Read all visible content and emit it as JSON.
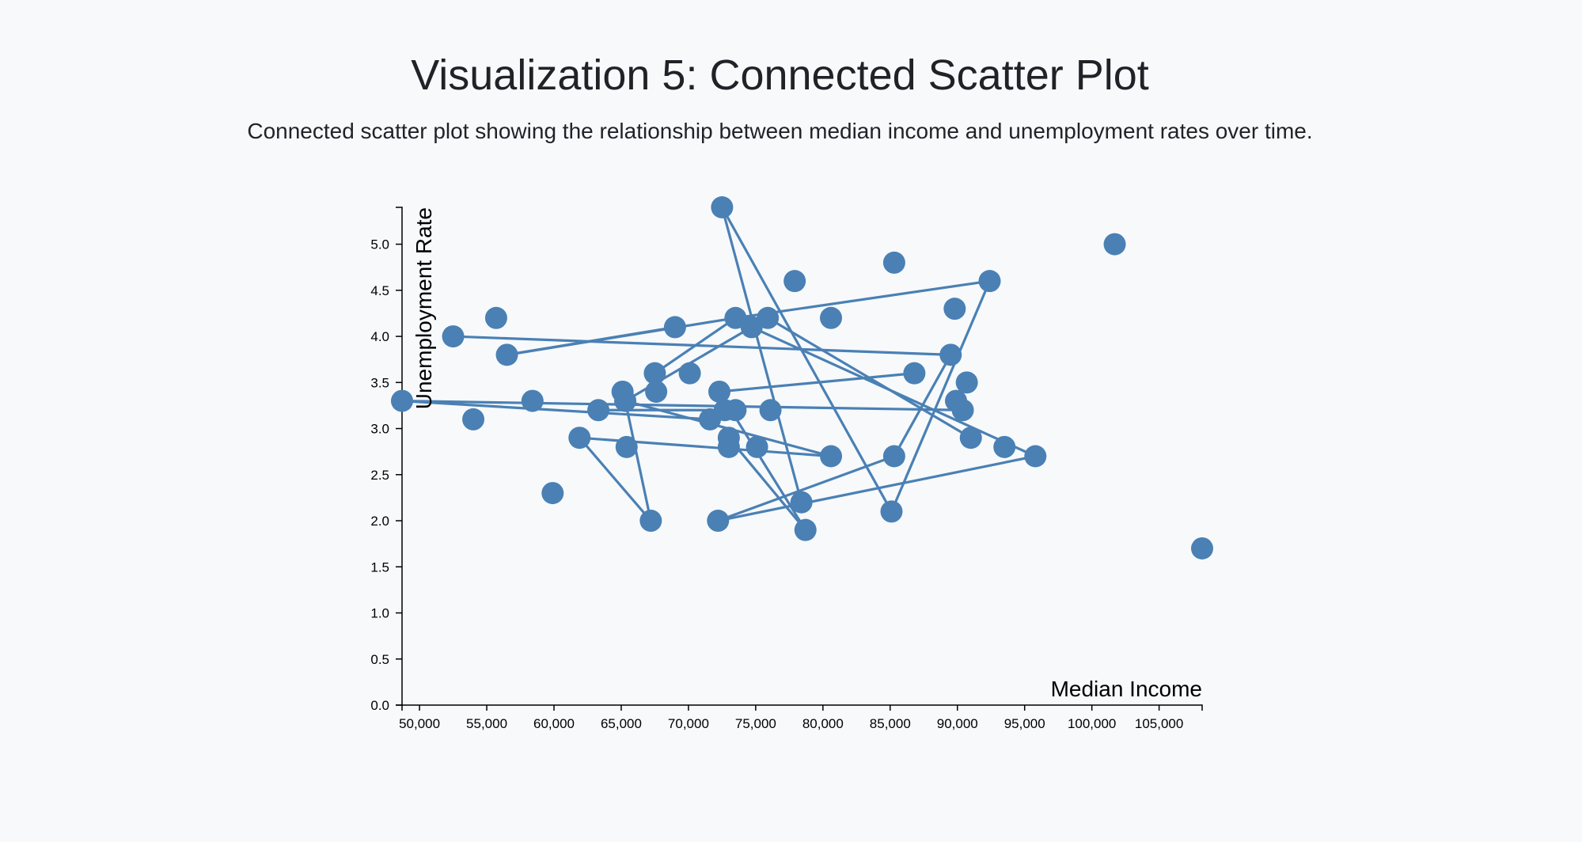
{
  "page": {
    "title": "Visualization 5: Connected Scatter Plot",
    "description": "Connected scatter plot showing the relationship between median income and unemployment rates over time."
  },
  "colors": {
    "accent": "#4a80b4",
    "axis": "#000000",
    "background": "#f7f9fb"
  },
  "chart_data": {
    "type": "scatter",
    "connected": true,
    "xlabel": "Median Income",
    "ylabel": "Unemployment Rate",
    "xlim": [
      48700,
      108200
    ],
    "ylim": [
      0,
      5.4
    ],
    "xticks": [
      50000,
      55000,
      60000,
      65000,
      70000,
      75000,
      80000,
      85000,
      90000,
      95000,
      100000,
      105000
    ],
    "xtick_labels": [
      "50,000",
      "55,000",
      "60,000",
      "65,000",
      "70,000",
      "75,000",
      "80,000",
      "85,000",
      "90,000",
      "95,000",
      "100,000",
      "105,000"
    ],
    "yticks": [
      0,
      0.5,
      1.0,
      1.5,
      2.0,
      2.5,
      3.0,
      3.5,
      4.0,
      4.5,
      5.0
    ],
    "ytick_labels": [
      "0.0",
      "0.5",
      "1.0",
      "1.5",
      "2.0",
      "2.5",
      "3.0",
      "3.5",
      "4.0",
      "4.5",
      "5.0"
    ],
    "points": [
      [
        48700,
        3.3
      ],
      [
        52500,
        4.0
      ],
      [
        55700,
        4.2
      ],
      [
        54000,
        3.1
      ],
      [
        56500,
        3.8
      ],
      [
        58400,
        3.3
      ],
      [
        59900,
        2.3
      ],
      [
        61900,
        2.9
      ],
      [
        63300,
        3.2
      ],
      [
        65100,
        3.4
      ],
      [
        65300,
        3.3
      ],
      [
        65400,
        2.8
      ],
      [
        67200,
        2.0
      ],
      [
        67500,
        3.6
      ],
      [
        67600,
        3.4
      ],
      [
        69000,
        4.1
      ],
      [
        70100,
        3.6
      ],
      [
        71600,
        3.1
      ],
      [
        72300,
        3.4
      ],
      [
        72200,
        2.0
      ],
      [
        72500,
        5.4
      ],
      [
        72700,
        3.2
      ],
      [
        73000,
        2.9
      ],
      [
        73000,
        2.8
      ],
      [
        73500,
        4.2
      ],
      [
        73500,
        3.2
      ],
      [
        74700,
        4.1
      ],
      [
        75100,
        2.8
      ],
      [
        75900,
        4.2
      ],
      [
        76100,
        3.2
      ],
      [
        77900,
        4.6
      ],
      [
        78400,
        2.2
      ],
      [
        78700,
        1.9
      ],
      [
        80600,
        4.2
      ],
      [
        80600,
        2.7
      ],
      [
        85100,
        2.1
      ],
      [
        85300,
        2.7
      ],
      [
        85300,
        4.8
      ],
      [
        86800,
        3.6
      ],
      [
        89500,
        3.8
      ],
      [
        89800,
        4.3
      ],
      [
        89900,
        3.3
      ],
      [
        90400,
        3.2
      ],
      [
        90700,
        3.5
      ],
      [
        91000,
        2.9
      ],
      [
        92400,
        4.6
      ],
      [
        93500,
        2.8
      ],
      [
        95800,
        2.7
      ],
      [
        101700,
        5.0
      ],
      [
        108200,
        1.7
      ]
    ],
    "segments": [
      [
        48700,
        3.3,
        71600,
        3.1
      ],
      [
        48700,
        3.3,
        90400,
        3.2
      ],
      [
        52500,
        4.0,
        89500,
        3.8
      ],
      [
        56500,
        3.8,
        73500,
        4.2
      ],
      [
        56500,
        3.8,
        69000,
        4.1
      ],
      [
        61900,
        2.9,
        67200,
        2.0
      ],
      [
        61900,
        2.9,
        80600,
        2.7
      ],
      [
        65300,
        3.3,
        74700,
        4.1
      ],
      [
        65300,
        3.3,
        67200,
        2.0
      ],
      [
        65300,
        3.3,
        80600,
        2.7
      ],
      [
        63300,
        3.2,
        72700,
        3.2
      ],
      [
        67500,
        3.6,
        73500,
        4.2
      ],
      [
        72300,
        3.4,
        86800,
        3.6
      ],
      [
        72500,
        5.4,
        78400,
        2.2
      ],
      [
        72500,
        5.4,
        85100,
        2.1
      ],
      [
        73500,
        4.2,
        92400,
        4.6
      ],
      [
        74700,
        4.1,
        95800,
        2.7
      ],
      [
        75900,
        4.2,
        91000,
        2.9
      ],
      [
        72300,
        3.4,
        78700,
        1.9
      ],
      [
        73000,
        2.9,
        78700,
        1.9
      ],
      [
        72200,
        2.0,
        95800,
        2.7
      ],
      [
        72200,
        2.0,
        85300,
        2.7
      ],
      [
        85100,
        2.1,
        92400,
        4.6
      ],
      [
        85300,
        2.7,
        89500,
        3.8
      ]
    ]
  }
}
